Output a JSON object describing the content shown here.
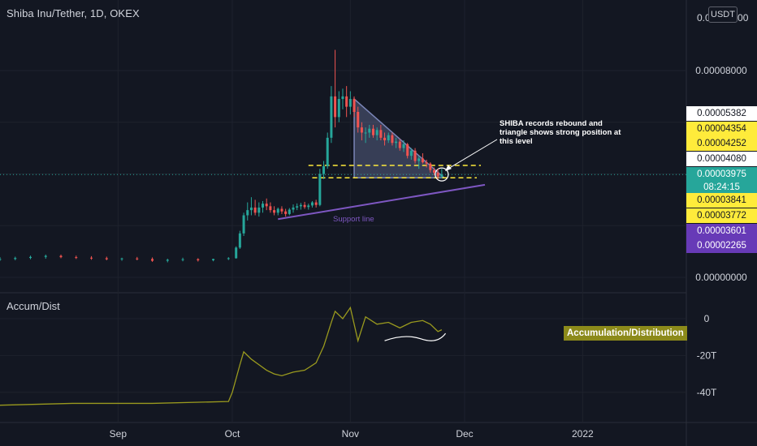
{
  "header": {
    "symbol_title": "Shiba Inu/Tether, 1D, OKEX",
    "currency_button": "USDT"
  },
  "indicator": {
    "title": "Accum/Dist",
    "label": "Accumulation/Distribution"
  },
  "annotation": {
    "note_lines": [
      "SHIBA records rebound and",
      "triangle shows strong position at",
      "this level"
    ],
    "support_label": "Support line"
  },
  "price_tags": [
    {
      "value": "0.00005382",
      "bg": "#ffffff",
      "fg": "#131722"
    },
    {
      "value": "0.00004354",
      "bg": "#ffeb3b",
      "fg": "#131722"
    },
    {
      "value": "0.00004252",
      "bg": "#ffeb3b",
      "fg": "#131722"
    },
    {
      "value": "0.00004080",
      "bg": "#ffffff",
      "fg": "#131722"
    },
    {
      "value": "0.00003975",
      "bg": "#26a69a",
      "fg": "#ffffff"
    },
    {
      "value": "08:24:15",
      "bg": "#26a69a",
      "fg": "#ffffff"
    },
    {
      "value": "0.00003841",
      "bg": "#ffeb3b",
      "fg": "#131722"
    },
    {
      "value": "0.00003772",
      "bg": "#ffeb3b",
      "fg": "#131722"
    },
    {
      "value": "0.00003601",
      "bg": "#673ab7",
      "fg": "#ffffff"
    },
    {
      "value": "0.00002265",
      "bg": "#673ab7",
      "fg": "#ffffff"
    }
  ],
  "colors": {
    "background": "#131722",
    "up": "#26a69a",
    "down": "#ef5350",
    "accum_line": "#9a9a1e",
    "support_line": "#7e57c2",
    "levels": "#ffeb3b",
    "triangle": "#7b86b8"
  },
  "chart_data": [
    {
      "type": "candlestick",
      "title": "Shiba Inu/Tether, 1D, OKEX",
      "y_tick_labels": [
        "0.00008000",
        "0.00000000"
      ],
      "x_tick_labels": [
        "Sep",
        "Oct",
        "Nov",
        "Dec",
        "2022"
      ],
      "ylim": [
        0,
        0.0001
      ],
      "last_price": 3.975e-05,
      "horizontal_levels": [
        4.08e-05,
        3.772e-05
      ],
      "ohlc": [
        {
          "date": "2021-08-01",
          "o": 7e-06,
          "h": 7.8e-06,
          "l": 6.4e-06,
          "c": 7.1e-06
        },
        {
          "date": "2021-08-05",
          "o": 7.1e-06,
          "h": 8e-06,
          "l": 6.6e-06,
          "c": 7.5e-06
        },
        {
          "date": "2021-08-09",
          "o": 7.5e-06,
          "h": 8.4e-06,
          "l": 7e-06,
          "c": 7.9e-06
        },
        {
          "date": "2021-08-13",
          "o": 7.9e-06,
          "h": 8.8e-06,
          "l": 7.2e-06,
          "c": 8.3e-06
        },
        {
          "date": "2021-08-17",
          "o": 8.3e-06,
          "h": 8.8e-06,
          "l": 7.4e-06,
          "c": 7.8e-06
        },
        {
          "date": "2021-08-21",
          "o": 7.8e-06,
          "h": 8.4e-06,
          "l": 7.1e-06,
          "c": 7.6e-06
        },
        {
          "date": "2021-08-25",
          "o": 7.6e-06,
          "h": 8.2e-06,
          "l": 6.8e-06,
          "c": 7.4e-06
        },
        {
          "date": "2021-08-29",
          "o": 7.4e-06,
          "h": 8e-06,
          "l": 6.6e-06,
          "c": 7e-06
        },
        {
          "date": "2021-09-02",
          "o": 7e-06,
          "h": 7.6e-06,
          "l": 6.4e-06,
          "c": 7.3e-06
        },
        {
          "date": "2021-09-06",
          "o": 7.3e-06,
          "h": 7.9e-06,
          "l": 6.6e-06,
          "c": 7.1e-06
        },
        {
          "date": "2021-09-10",
          "o": 7.1e-06,
          "h": 7.7e-06,
          "l": 6e-06,
          "c": 6.4e-06
        },
        {
          "date": "2021-09-14",
          "o": 6.4e-06,
          "h": 7.2e-06,
          "l": 5.8e-06,
          "c": 6.8e-06
        },
        {
          "date": "2021-09-18",
          "o": 6.8e-06,
          "h": 7.6e-06,
          "l": 6.2e-06,
          "c": 7e-06
        },
        {
          "date": "2021-09-22",
          "o": 7e-06,
          "h": 7.4e-06,
          "l": 6.1e-06,
          "c": 6.6e-06
        },
        {
          "date": "2021-09-26",
          "o": 6.6e-06,
          "h": 7.2e-06,
          "l": 6.2e-06,
          "c": 7.1e-06
        },
        {
          "date": "2021-09-30",
          "o": 7.1e-06,
          "h": 7.8e-06,
          "l": 6.7e-06,
          "c": 7.4e-06
        },
        {
          "date": "2021-10-02",
          "o": 7.4e-06,
          "h": 1.2e-05,
          "l": 7.2e-06,
          "c": 1.15e-05
        },
        {
          "date": "2021-10-03",
          "o": 1.15e-05,
          "h": 1.8e-05,
          "l": 1.1e-05,
          "c": 1.7e-05
        },
        {
          "date": "2021-10-04",
          "o": 1.7e-05,
          "h": 2.5e-05,
          "l": 1.6e-05,
          "c": 2.4e-05
        },
        {
          "date": "2021-10-05",
          "o": 2.4e-05,
          "h": 2.9e-05,
          "l": 2.2e-05,
          "c": 2.6e-05
        },
        {
          "date": "2021-10-06",
          "o": 2.6e-05,
          "h": 3.1e-05,
          "l": 2.4e-05,
          "c": 2.7e-05
        },
        {
          "date": "2021-10-07",
          "o": 2.7e-05,
          "h": 3e-05,
          "l": 2.4e-05,
          "c": 2.5e-05
        },
        {
          "date": "2021-10-08",
          "o": 2.5e-05,
          "h": 2.9e-05,
          "l": 2.35e-05,
          "c": 2.7e-05
        },
        {
          "date": "2021-10-09",
          "o": 2.7e-05,
          "h": 2.95e-05,
          "l": 2.5e-05,
          "c": 2.85e-05
        },
        {
          "date": "2021-10-10",
          "o": 2.85e-05,
          "h": 3.05e-05,
          "l": 2.6e-05,
          "c": 2.75e-05
        },
        {
          "date": "2021-10-11",
          "o": 2.75e-05,
          "h": 2.9e-05,
          "l": 2.5e-05,
          "c": 2.6e-05
        },
        {
          "date": "2021-10-12",
          "o": 2.6e-05,
          "h": 2.75e-05,
          "l": 2.4e-05,
          "c": 2.5e-05
        },
        {
          "date": "2021-10-13",
          "o": 2.5e-05,
          "h": 2.7e-05,
          "l": 2.4e-05,
          "c": 2.65e-05
        },
        {
          "date": "2021-10-14",
          "o": 2.65e-05,
          "h": 2.75e-05,
          "l": 2.45e-05,
          "c": 2.55e-05
        },
        {
          "date": "2021-10-15",
          "o": 2.55e-05,
          "h": 2.65e-05,
          "l": 2.35e-05,
          "c": 2.45e-05
        },
        {
          "date": "2021-10-16",
          "o": 2.45e-05,
          "h": 2.68e-05,
          "l": 2.4e-05,
          "c": 2.62e-05
        },
        {
          "date": "2021-10-17",
          "o": 2.62e-05,
          "h": 2.82e-05,
          "l": 2.5e-05,
          "c": 2.7e-05
        },
        {
          "date": "2021-10-18",
          "o": 2.7e-05,
          "h": 2.86e-05,
          "l": 2.6e-05,
          "c": 2.75e-05
        },
        {
          "date": "2021-10-19",
          "o": 2.75e-05,
          "h": 2.88e-05,
          "l": 2.62e-05,
          "c": 2.8e-05
        },
        {
          "date": "2021-10-20",
          "o": 2.8e-05,
          "h": 2.92e-05,
          "l": 2.65e-05,
          "c": 2.72e-05
        },
        {
          "date": "2021-10-21",
          "o": 2.72e-05,
          "h": 2.85e-05,
          "l": 2.62e-05,
          "c": 2.78e-05
        },
        {
          "date": "2021-10-22",
          "o": 2.78e-05,
          "h": 2.95e-05,
          "l": 2.7e-05,
          "c": 2.9e-05
        },
        {
          "date": "2021-10-23",
          "o": 2.9e-05,
          "h": 3e-05,
          "l": 2.7e-05,
          "c": 2.8e-05
        },
        {
          "date": "2021-10-24",
          "o": 2.8e-05,
          "h": 4.2e-05,
          "l": 2.75e-05,
          "c": 4e-05
        },
        {
          "date": "2021-10-25",
          "o": 4e-05,
          "h": 4.5e-05,
          "l": 3.8e-05,
          "c": 4.3e-05
        },
        {
          "date": "2021-10-26",
          "o": 4.3e-05,
          "h": 5.6e-05,
          "l": 4.2e-05,
          "c": 5.4e-05
        },
        {
          "date": "2021-10-27",
          "o": 5.4e-05,
          "h": 7.4e-05,
          "l": 5.2e-05,
          "c": 7e-05
        },
        {
          "date": "2021-10-28",
          "o": 7e-05,
          "h": 8.8e-05,
          "l": 5.8e-05,
          "c": 6.2e-05
        },
        {
          "date": "2021-10-29",
          "o": 6.2e-05,
          "h": 7.2e-05,
          "l": 6e-05,
          "c": 6.9e-05
        },
        {
          "date": "2021-10-30",
          "o": 6.9e-05,
          "h": 7.3e-05,
          "l": 6.5e-05,
          "c": 7e-05
        },
        {
          "date": "2021-10-31",
          "o": 7e-05,
          "h": 7.4e-05,
          "l": 6.2e-05,
          "c": 6.6e-05
        },
        {
          "date": "2021-11-01",
          "o": 6.6e-05,
          "h": 7.2e-05,
          "l": 6.3e-05,
          "c": 6.9e-05
        },
        {
          "date": "2021-11-02",
          "o": 6.9e-05,
          "h": 7e-05,
          "l": 6.2e-05,
          "c": 6.4e-05
        },
        {
          "date": "2021-11-03",
          "o": 6.4e-05,
          "h": 6.6e-05,
          "l": 5.6e-05,
          "c": 5.8e-05
        },
        {
          "date": "2021-11-04",
          "o": 5.8e-05,
          "h": 6e-05,
          "l": 5.3e-05,
          "c": 5.6e-05
        },
        {
          "date": "2021-11-05",
          "o": 5.6e-05,
          "h": 5.8e-05,
          "l": 5.2e-05,
          "c": 5.6e-05
        },
        {
          "date": "2021-11-06",
          "o": 5.6e-05,
          "h": 5.9e-05,
          "l": 5.4e-05,
          "c": 5.75e-05
        },
        {
          "date": "2021-11-07",
          "o": 5.75e-05,
          "h": 5.9e-05,
          "l": 5.4e-05,
          "c": 5.5e-05
        },
        {
          "date": "2021-11-08",
          "o": 5.5e-05,
          "h": 5.8e-05,
          "l": 5.3e-05,
          "c": 5.7e-05
        },
        {
          "date": "2021-11-09",
          "o": 5.7e-05,
          "h": 5.9e-05,
          "l": 5.3e-05,
          "c": 5.4e-05
        },
        {
          "date": "2021-11-10",
          "o": 5.4e-05,
          "h": 5.6e-05,
          "l": 5.1e-05,
          "c": 5.3e-05
        },
        {
          "date": "2021-11-11",
          "o": 5.3e-05,
          "h": 5.6e-05,
          "l": 5.2e-05,
          "c": 5.5e-05
        },
        {
          "date": "2021-11-12",
          "o": 5.5e-05,
          "h": 5.6e-05,
          "l": 5.1e-05,
          "c": 5.2e-05
        },
        {
          "date": "2021-11-13",
          "o": 5.2e-05,
          "h": 5.4e-05,
          "l": 5e-05,
          "c": 5.25e-05
        },
        {
          "date": "2021-11-14",
          "o": 5.25e-05,
          "h": 5.35e-05,
          "l": 4.9e-05,
          "c": 5e-05
        },
        {
          "date": "2021-11-15",
          "o": 5e-05,
          "h": 5.3e-05,
          "l": 4.85e-05,
          "c": 5.15e-05
        },
        {
          "date": "2021-11-16",
          "o": 5.15e-05,
          "h": 5.2e-05,
          "l": 4.6e-05,
          "c": 4.7e-05
        },
        {
          "date": "2021-11-17",
          "o": 4.7e-05,
          "h": 5e-05,
          "l": 4.55e-05,
          "c": 4.9e-05
        },
        {
          "date": "2021-11-18",
          "o": 4.9e-05,
          "h": 5e-05,
          "l": 4.4e-05,
          "c": 4.5e-05
        },
        {
          "date": "2021-11-19",
          "o": 4.5e-05,
          "h": 4.7e-05,
          "l": 4.2e-05,
          "c": 4.6e-05
        },
        {
          "date": "2021-11-20",
          "o": 4.6e-05,
          "h": 4.8e-05,
          "l": 4.4e-05,
          "c": 4.45e-05
        },
        {
          "date": "2021-11-21",
          "o": 4.45e-05,
          "h": 4.55e-05,
          "l": 4.25e-05,
          "c": 4.4e-05
        },
        {
          "date": "2021-11-22",
          "o": 4.4e-05,
          "h": 4.45e-05,
          "l": 4.05e-05,
          "c": 4.15e-05
        },
        {
          "date": "2021-11-23",
          "o": 4.15e-05,
          "h": 4.25e-05,
          "l": 3.95e-05,
          "c": 4.05e-05
        },
        {
          "date": "2021-11-24",
          "o": 4.05e-05,
          "h": 4.2e-05,
          "l": 3.8e-05,
          "c": 3.9e-05
        },
        {
          "date": "2021-11-25",
          "o": 3.9e-05,
          "h": 4.2e-05,
          "l": 3.83e-05,
          "c": 3.98e-05
        }
      ]
    },
    {
      "type": "line",
      "title": "Accum/Dist",
      "series_label": "Accumulation/Distribution",
      "y_tick_labels": [
        "0",
        "-20T",
        "-40T"
      ],
      "ylim": [
        -55,
        10
      ],
      "x": [
        "2021-08-01",
        "2021-08-20",
        "2021-09-10",
        "2021-09-30",
        "2021-10-01",
        "2021-10-03",
        "2021-10-04",
        "2021-10-06",
        "2021-10-08",
        "2021-10-10",
        "2021-10-12",
        "2021-10-14",
        "2021-10-17",
        "2021-10-20",
        "2021-10-23",
        "2021-10-25",
        "2021-10-27",
        "2021-10-28",
        "2021-10-30",
        "2021-11-01",
        "2021-11-03",
        "2021-11-05",
        "2021-11-08",
        "2021-11-11",
        "2021-11-14",
        "2021-11-17",
        "2021-11-20",
        "2021-11-22",
        "2021-11-24",
        "2021-11-25"
      ],
      "values": [
        -47,
        -46,
        -46,
        -45,
        -40,
        -25,
        -18,
        -22,
        -25,
        -28,
        -30,
        -31,
        -29,
        -28,
        -24,
        -15,
        -2,
        4,
        0,
        6,
        -12,
        1,
        -3,
        -2,
        -5,
        -2,
        -1,
        -3,
        -7,
        -6
      ]
    }
  ]
}
